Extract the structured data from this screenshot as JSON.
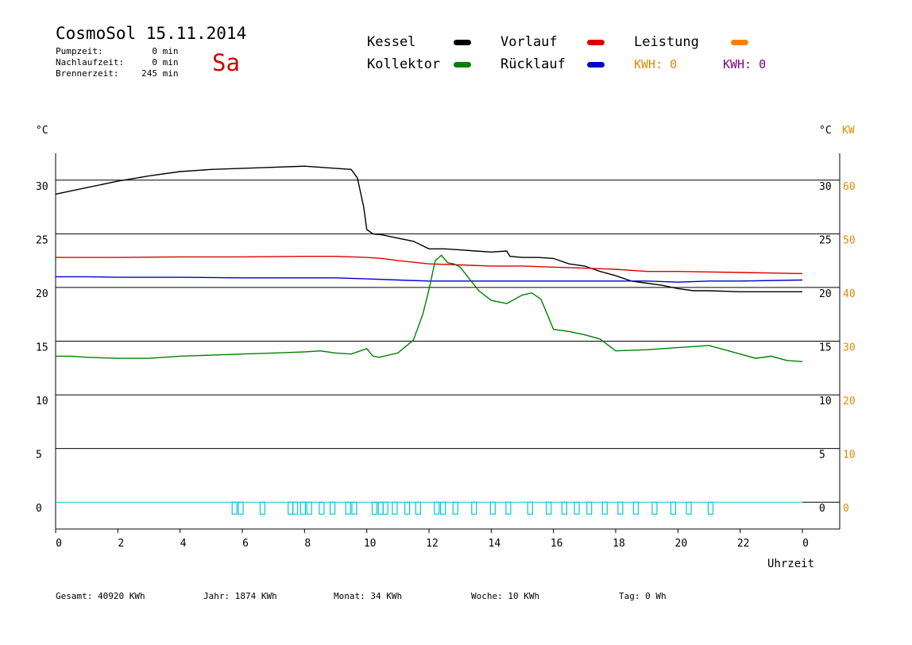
{
  "header": {
    "title": "CosmoSol 15.11.2014",
    "weekday": "Sa",
    "stats": [
      {
        "label": "Pumpzeit:",
        "value": "0",
        "unit": "min"
      },
      {
        "label": "Nachlaufzeit:",
        "value": "0",
        "unit": "min"
      },
      {
        "label": "Brennerzeit:",
        "value": "245",
        "unit": "min"
      }
    ]
  },
  "legend": {
    "kessel": {
      "label": "Kessel",
      "color": "#000000"
    },
    "kollektor": {
      "label": "Kollektor",
      "color": "#008000"
    },
    "vorlauf": {
      "label": "Vorlauf",
      "color": "#dd0000"
    },
    "ruecklauf": {
      "label": "Rücklauf",
      "color": "#0000cc"
    },
    "leistung": {
      "label": "Leistung",
      "color": "#ff8000"
    },
    "kwh_orange": {
      "label": "KWH: 0",
      "color": "#e08a00"
    },
    "kwh_purple": {
      "label": "KWH: 0",
      "color": "#800080"
    }
  },
  "footer": [
    {
      "label": "Gesamt:",
      "value": "40920 KWh"
    },
    {
      "label": "Jahr:",
      "value": "1874 KWh"
    },
    {
      "label": "Monat:",
      "value": "34 KWh"
    },
    {
      "label": "Woche:",
      "value": "10 KWh"
    },
    {
      "label": "Tag:",
      "value": "0 Wh"
    }
  ],
  "chart_data": {
    "type": "line",
    "xlabel": "Uhrzeit",
    "ylabel_left": "°C",
    "ylabel_right": "°C",
    "ylabel_right2": "KW",
    "xlim": [
      0,
      24
    ],
    "ylim": [
      -2.5,
      32.5
    ],
    "y2lim": [
      -5,
      65
    ],
    "x_ticks": [
      "0",
      "2",
      "4",
      "6",
      "8",
      "10",
      "12",
      "14",
      "16",
      "18",
      "20",
      "22",
      "0"
    ],
    "y_ticks": [
      0,
      5,
      10,
      15,
      20,
      25,
      30
    ],
    "y2_ticks": [
      0,
      10,
      20,
      30,
      40,
      50,
      60
    ],
    "grid": true,
    "axis_color_right2": "#e08a00",
    "series": [
      {
        "name": "Kessel",
        "color": "#000000",
        "x": [
          0,
          0.5,
          1,
          2,
          3,
          4,
          5,
          6,
          7,
          8,
          8.5,
          9,
          9.5,
          9.7,
          9.9,
          10.0,
          10.2,
          10.5,
          11,
          11.5,
          12,
          12.5,
          13,
          13.5,
          14,
          14.5,
          14.6,
          15,
          15.5,
          16,
          16.5,
          17,
          17.5,
          18,
          18.5,
          19,
          19.5,
          20,
          20.5,
          21,
          22,
          23,
          24
        ],
        "y": [
          28.7,
          29.0,
          29.3,
          29.9,
          30.4,
          30.8,
          31.0,
          31.1,
          31.2,
          31.3,
          31.2,
          31.1,
          31.0,
          30.2,
          27.5,
          25.4,
          25.0,
          24.9,
          24.6,
          24.3,
          23.6,
          23.6,
          23.5,
          23.4,
          23.3,
          23.4,
          22.9,
          22.8,
          22.8,
          22.7,
          22.2,
          22.0,
          21.5,
          21.1,
          20.6,
          20.4,
          20.2,
          19.9,
          19.7,
          19.7,
          19.6,
          19.6,
          19.6
        ]
      },
      {
        "name": "Vorlauf",
        "color": "#dd0000",
        "x": [
          0,
          2,
          4,
          6,
          8,
          9,
          10,
          10.5,
          11,
          12,
          13,
          14,
          15,
          16,
          17,
          18,
          19,
          20,
          22,
          24
        ],
        "y": [
          22.8,
          22.8,
          22.85,
          22.85,
          22.9,
          22.9,
          22.8,
          22.7,
          22.5,
          22.2,
          22.1,
          22.0,
          22.0,
          21.9,
          21.8,
          21.7,
          21.5,
          21.5,
          21.4,
          21.3
        ]
      },
      {
        "name": "Rücklauf",
        "color": "#0000cc",
        "x": [
          0,
          1,
          2,
          4,
          6,
          8,
          9,
          10,
          11,
          12,
          13,
          14,
          15,
          16,
          17,
          18,
          19,
          20,
          21,
          22,
          24
        ],
        "y": [
          21.0,
          21.0,
          20.95,
          20.95,
          20.9,
          20.9,
          20.9,
          20.8,
          20.7,
          20.6,
          20.6,
          20.6,
          20.6,
          20.6,
          20.6,
          20.6,
          20.6,
          20.5,
          20.6,
          20.6,
          20.7
        ]
      },
      {
        "name": "Kollektor",
        "color": "#008000",
        "x": [
          0,
          0.5,
          1,
          2,
          3,
          4,
          5,
          6,
          7,
          8,
          8.5,
          9,
          9.5,
          10,
          10.2,
          10.4,
          11,
          11.5,
          11.8,
          12.0,
          12.2,
          12.4,
          12.6,
          12.8,
          13.0,
          13.3,
          13.6,
          14,
          14.5,
          15,
          15.3,
          15.6,
          16,
          16.5,
          17,
          17.5,
          18,
          19,
          20,
          20.5,
          21,
          21.5,
          22,
          22.5,
          23,
          23.5,
          24
        ],
        "y": [
          13.6,
          13.6,
          13.5,
          13.4,
          13.4,
          13.6,
          13.7,
          13.8,
          13.9,
          14.0,
          14.1,
          13.9,
          13.8,
          14.3,
          13.6,
          13.5,
          13.9,
          15.1,
          17.5,
          19.8,
          22.5,
          23.0,
          22.3,
          22.2,
          21.9,
          20.8,
          19.7,
          18.8,
          18.5,
          19.3,
          19.5,
          18.9,
          16.1,
          15.9,
          15.6,
          15.2,
          14.1,
          14.2,
          14.4,
          14.5,
          14.6,
          14.2,
          13.8,
          13.4,
          13.6,
          13.2,
          13.1
        ]
      }
    ],
    "pump_pulses_x": [
      5.75,
      5.95,
      6.65,
      7.55,
      7.7,
      7.95,
      8.15,
      8.55,
      8.9,
      9.4,
      9.6,
      10.25,
      10.45,
      10.6,
      10.9,
      11.3,
      11.65,
      12.25,
      12.45,
      12.85,
      13.45,
      14.05,
      14.55,
      15.25,
      15.85,
      16.35,
      16.75,
      17.15,
      17.65,
      18.15,
      18.65,
      19.25,
      19.85,
      20.35,
      21.05
    ],
    "pump_color": "#00c8d8"
  }
}
